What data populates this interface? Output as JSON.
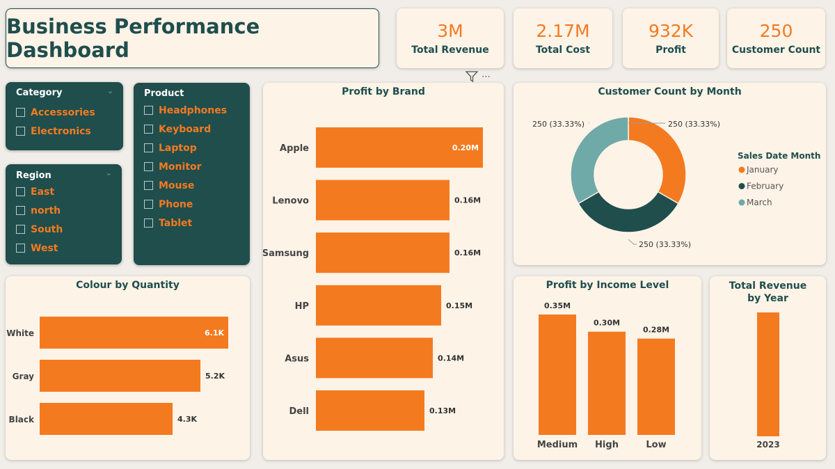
{
  "title": "Business Performance Dashboard",
  "kpis": [
    {
      "value": "3M",
      "label": "Total Revenue"
    },
    {
      "value": "2.17M",
      "label": "Total Cost"
    },
    {
      "value": "932K",
      "label": "Profit"
    },
    {
      "value": "250",
      "label": "Customer Count"
    }
  ],
  "slicers": {
    "category": {
      "header": "Category",
      "items": [
        "Accessories",
        "Electronics"
      ]
    },
    "region": {
      "header": "Region",
      "items": [
        "East",
        "north",
        "South",
        "West"
      ]
    },
    "product": {
      "header": "Product",
      "items": [
        "Headphones",
        "Keyboard",
        "Laptop",
        "Monitor",
        "Mouse",
        "Phone",
        "Tablet"
      ]
    }
  },
  "icons": {
    "filter": "filter-icon",
    "more": "more-options-icon",
    "chevron": "chevron-down-icon"
  },
  "colors": {
    "accent": "#f47a20",
    "teal": "#1f4e4d",
    "light_teal": "#6fa9a8",
    "card": "#fdf3e7"
  },
  "chart_data": [
    {
      "id": "profit_by_brand",
      "type": "bar",
      "orientation": "horizontal",
      "title": "Profit by Brand",
      "categories": [
        "Apple",
        "Lenovo",
        "Samsung",
        "HP",
        "Asus",
        "Dell"
      ],
      "values": [
        0.2,
        0.16,
        0.16,
        0.15,
        0.14,
        0.13
      ],
      "data_labels": [
        "0.20M",
        "0.16M",
        "0.16M",
        "0.15M",
        "0.14M",
        "0.13M"
      ],
      "unit": "M"
    },
    {
      "id": "customer_count_by_month",
      "type": "pie",
      "donut": true,
      "title": "Customer Count by Month",
      "legend_title": "Sales Date Month",
      "legend_position": "right",
      "categories": [
        "January",
        "February",
        "March"
      ],
      "values": [
        250,
        250,
        250
      ],
      "data_labels": [
        "250 (33.33%)",
        "250 (33.33%)",
        "250 (33.33%)"
      ],
      "colors": [
        "#f47a20",
        "#1f4e4d",
        "#6fa9a8"
      ]
    },
    {
      "id": "colour_by_quantity",
      "type": "bar",
      "orientation": "horizontal",
      "title": "Colour by Quantity",
      "categories": [
        "White",
        "Gray",
        "Black"
      ],
      "values": [
        6.1,
        5.2,
        4.3
      ],
      "data_labels": [
        "6.1K",
        "5.2K",
        "4.3K"
      ],
      "unit": "K"
    },
    {
      "id": "profit_by_income_level",
      "type": "bar",
      "orientation": "vertical",
      "title": "Profit by Income Level",
      "categories": [
        "Medium",
        "High",
        "Low"
      ],
      "values": [
        0.35,
        0.3,
        0.28
      ],
      "data_labels": [
        "0.35M",
        "0.30M",
        "0.28M"
      ],
      "unit": "M"
    },
    {
      "id": "total_revenue_by_year",
      "type": "bar",
      "orientation": "vertical",
      "title": "Total Revenue by Year",
      "categories": [
        "2023"
      ],
      "values": [
        3
      ]
    }
  ]
}
